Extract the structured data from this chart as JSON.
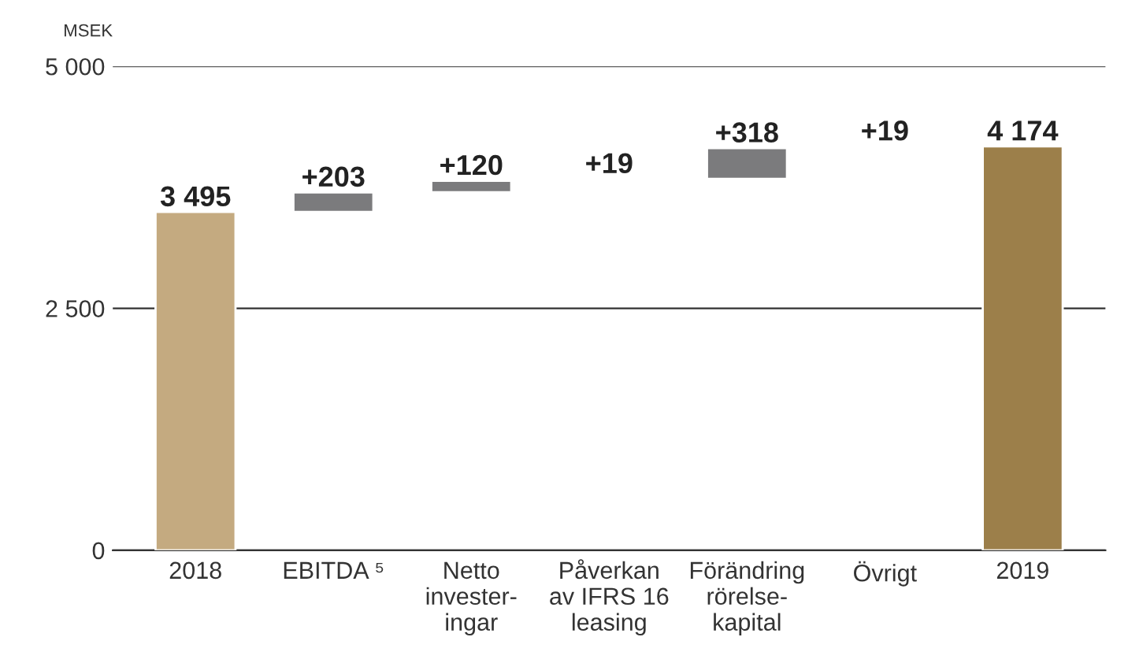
{
  "chart_data": {
    "type": "bar",
    "ylabel": "MSEK",
    "categories": [
      "2018",
      "EBITDA ⁵",
      "Netto\ninvester-\ningar",
      "Påverkan\nav IFRS 16\nleasing",
      "Förändring\nrörelse-\nkapital",
      "Övrigt",
      "2019"
    ],
    "values": [
      3495,
      203,
      120,
      19,
      318,
      19,
      4174
    ],
    "base": [
      0,
      3495,
      3698,
      3818,
      3837,
      4155,
      0
    ],
    "colors": [
      "#c4aa80",
      "#7b7b7d",
      "#7b7b7d",
      "#7b7b7d",
      "#7b7b7d",
      "#7b7b7d",
      "#9c7f4a"
    ],
    "value_labels": [
      "3 495",
      "+203",
      "+120",
      "+19",
      "+318",
      "+19",
      "4 174"
    ],
    "ylim": [
      0,
      5000
    ],
    "yticks": [
      0,
      {
        "value": 2500,
        "label": "2 500"
      },
      {
        "value": 5000,
        "label": "5 000"
      }
    ],
    "grid": "y"
  }
}
